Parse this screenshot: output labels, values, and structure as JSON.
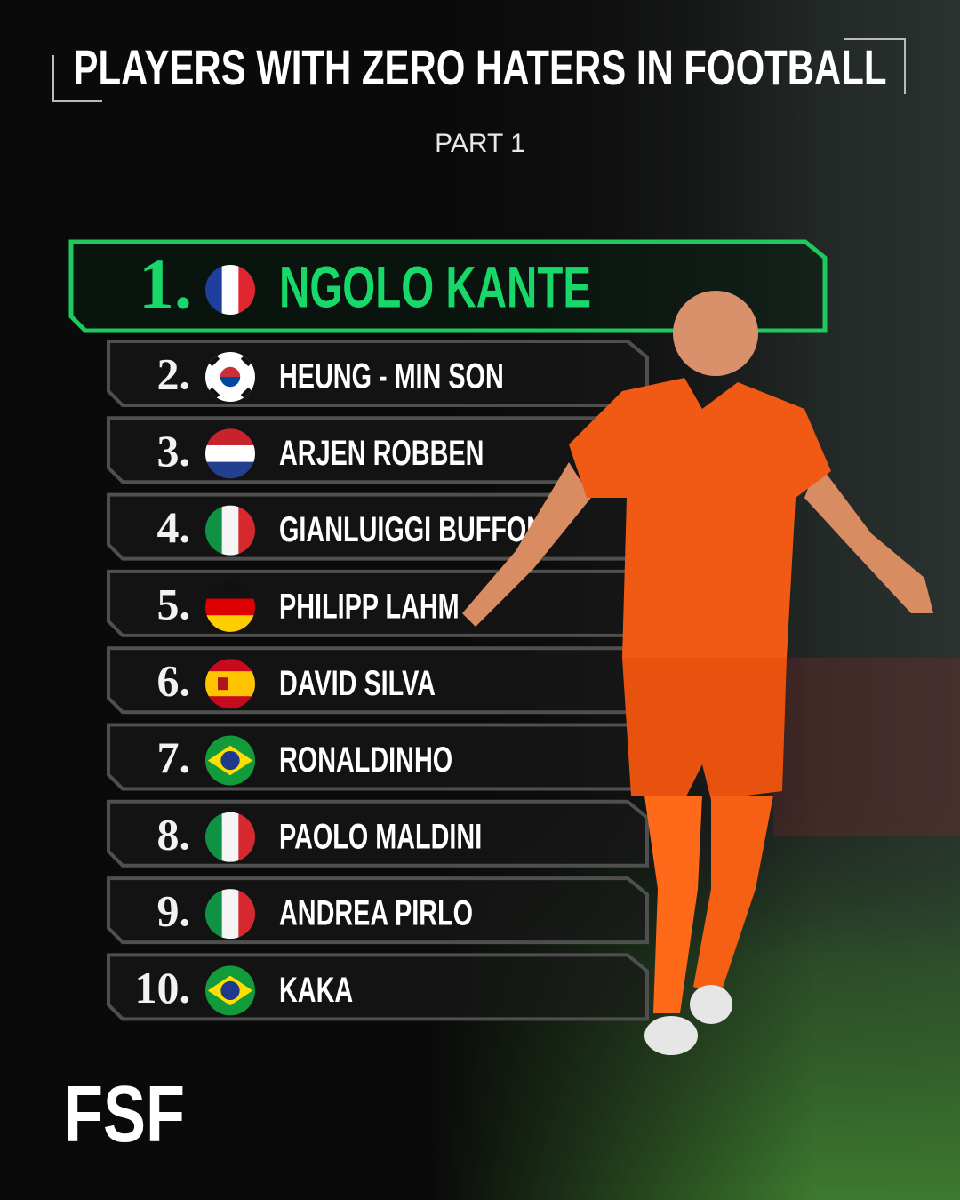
{
  "header": {
    "title": "PLAYERS WITH ZERO HATERS IN FOOTBALL",
    "subtitle": "PART 1"
  },
  "list": [
    {
      "rank": "1.",
      "name": "NGOLO KANTE"
    },
    {
      "rank": "2.",
      "name": "HEUNG - MIN SON"
    },
    {
      "rank": "3.",
      "name": "ARJEN ROBBEN"
    },
    {
      "rank": "4.",
      "name": "GIANLUIGGI BUFFON"
    },
    {
      "rank": "5.",
      "name": "PHILIPP LAHM"
    },
    {
      "rank": "6.",
      "name": "DAVID SILVA"
    },
    {
      "rank": "7.",
      "name": "RONALDINHO"
    },
    {
      "rank": "8.",
      "name": "PAOLO MALDINI"
    },
    {
      "rank": "9.",
      "name": "ANDREA PIRLO"
    },
    {
      "rank": "10.",
      "name": "KAKA"
    }
  ],
  "logo": "FSF"
}
